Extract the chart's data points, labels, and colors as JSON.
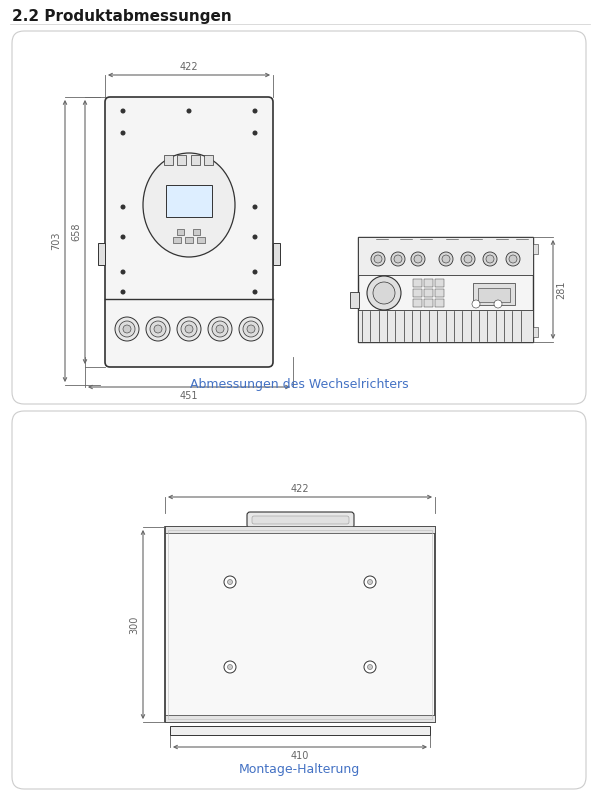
{
  "title": "2.2 Produktabmessungen",
  "title_color": "#1a1a1a",
  "title_fontsize": 11,
  "bg_color": "#ffffff",
  "panel1_caption": "Abmessungen des Wechselrichters",
  "panel2_caption": "Montage-Halterung",
  "caption_color": "#4472C4",
  "caption_fontsize": 9,
  "dim_color": "#666666",
  "line_color": "#333333",
  "panel_edge_color": "#cccccc",
  "panel_fill": "#ffffff",
  "device_fill": "#f5f5f5",
  "dim_422_front": "422",
  "dim_451_front": "451",
  "dim_703_front": "703",
  "dim_658_front": "658",
  "dim_281_side": "281",
  "dim_422_mount": "422",
  "dim_410_mount": "410",
  "dim_300_mount": "300"
}
